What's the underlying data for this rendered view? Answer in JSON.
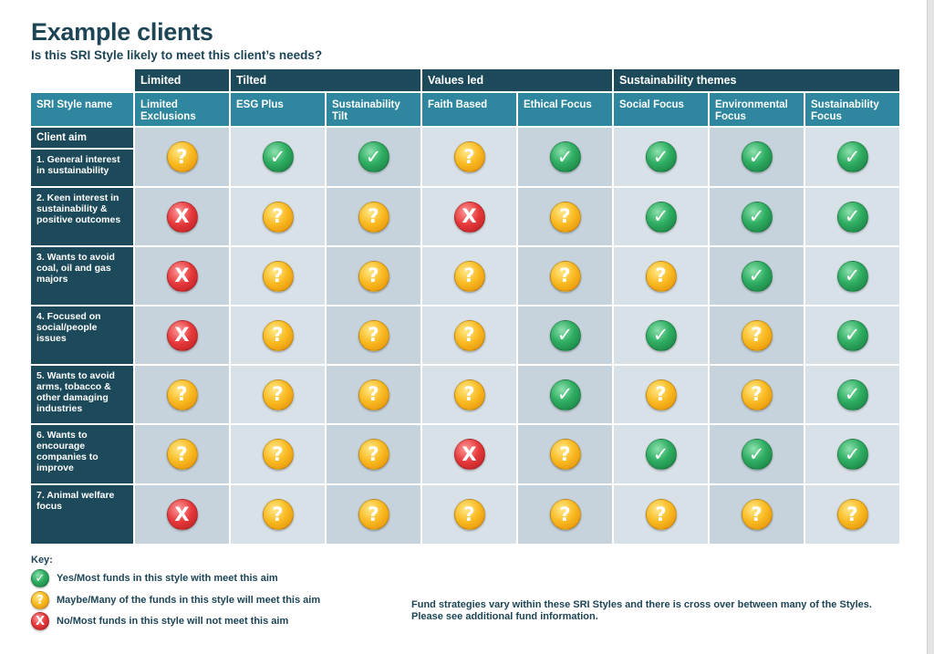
{
  "title": "Example clients",
  "subtitle": "Is this SRI Style likely to meet this client’s needs?",
  "groups": [
    {
      "label": "Limited"
    },
    {
      "label": "Tilted"
    },
    {
      "label": "Values led"
    },
    {
      "label": "Sustainability themes"
    }
  ],
  "sri_style_header": "SRI Style name",
  "client_aim_label": "Client aim",
  "styles": [
    "Limited Exclusions",
    "ESG Plus",
    "Sustainability Tilt",
    "Faith Based",
    "Ethical Focus",
    "Social Focus",
    "Environmental Focus",
    "Sustainability Focus"
  ],
  "rows": [
    {
      "label": "1. General interest in sustainability",
      "ratings": [
        "maybe",
        "yes",
        "yes",
        "maybe",
        "yes",
        "yes",
        "yes",
        "yes"
      ]
    },
    {
      "label": "2. Keen interest in sustainability & positive outcomes",
      "ratings": [
        "no",
        "maybe",
        "maybe",
        "no",
        "maybe",
        "yes",
        "yes",
        "yes"
      ]
    },
    {
      "label": "3. Wants to avoid coal, oil and gas majors",
      "ratings": [
        "no",
        "maybe",
        "maybe",
        "maybe",
        "maybe",
        "maybe",
        "yes",
        "yes"
      ]
    },
    {
      "label": "4. Focused on social/people issues",
      "ratings": [
        "no",
        "maybe",
        "maybe",
        "maybe",
        "yes",
        "yes",
        "maybe",
        "yes"
      ]
    },
    {
      "label": "5. Wants to avoid arms, tobacco & other damaging industries",
      "ratings": [
        "maybe",
        "maybe",
        "maybe",
        "maybe",
        "yes",
        "maybe",
        "maybe",
        "yes"
      ]
    },
    {
      "label": "6. Wants to encourage companies to improve",
      "ratings": [
        "maybe",
        "maybe",
        "maybe",
        "no",
        "maybe",
        "yes",
        "yes",
        "yes"
      ]
    },
    {
      "label": "7. Animal welfare focus",
      "ratings": [
        "no",
        "maybe",
        "maybe",
        "maybe",
        "maybe",
        "maybe",
        "maybe",
        "maybe"
      ]
    }
  ],
  "symbols": {
    "yes": "✓",
    "maybe": "?",
    "no": "X"
  },
  "key": {
    "title": "Key:",
    "items": [
      {
        "type": "yes",
        "text": "Yes/Most funds in this style with meet this aim"
      },
      {
        "type": "maybe",
        "text": "Maybe/Many of the funds in this style will meet this aim"
      },
      {
        "type": "no",
        "text": "No/Most funds in this style will not meet this aim"
      }
    ]
  },
  "note": {
    "line1": "Fund strategies vary within these SRI Styles and there is cross over between many of the Styles.",
    "line2": "Please see additional fund information."
  },
  "colors": {
    "header_dark": "#1d4a5a",
    "header_mid": "#2e879f",
    "cell_shade_a": "#c6d3dc",
    "cell_shade_b": "#d8e1e8",
    "yes": "#2fae62",
    "maybe": "#f9b920",
    "no": "#e6393b"
  }
}
